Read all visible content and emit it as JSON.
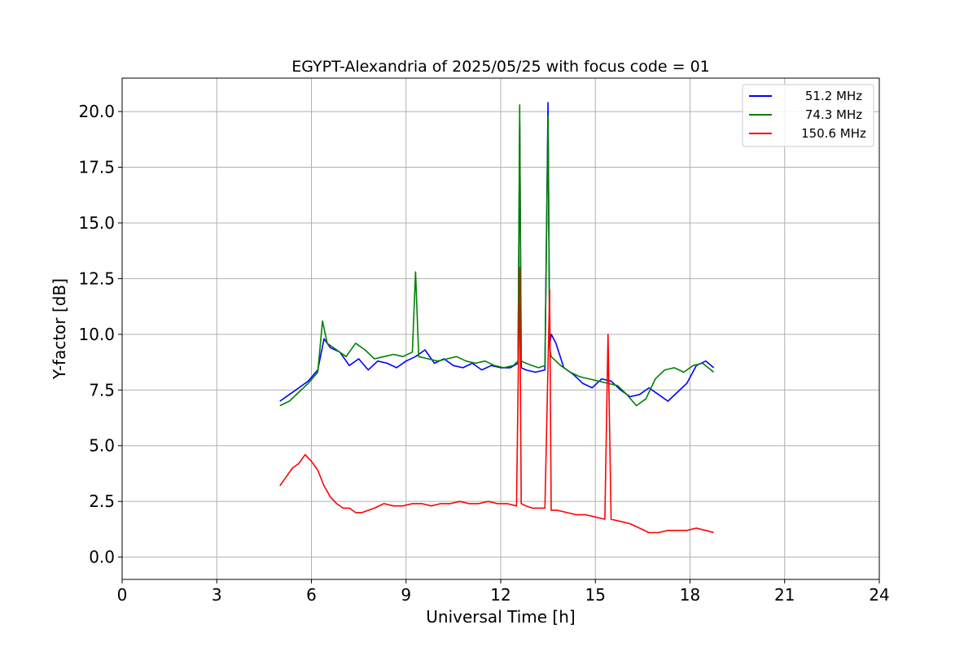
{
  "chart_data": {
    "type": "line",
    "title": "EGYPT-Alexandria of 2025/05/25 with focus code = 01",
    "xlabel": "Universal Time [h]",
    "ylabel": "Y-factor [dB]",
    "xlim": [
      0,
      24
    ],
    "ylim": [
      -1.0,
      21.5
    ],
    "xticks": [
      "0",
      "3",
      "6",
      "9",
      "12",
      "15",
      "18",
      "21",
      "24"
    ],
    "yticks": [
      "0.0",
      "2.5",
      "5.0",
      "7.5",
      "10.0",
      "12.5",
      "15.0",
      "17.5",
      "20.0"
    ],
    "grid": true,
    "legend_position": "top-right",
    "series": [
      {
        "name": "51.2 MHz",
        "color": "#0000ff",
        "x": [
          5.0,
          5.3,
          5.6,
          5.9,
          6.2,
          6.4,
          6.6,
          6.9,
          7.2,
          7.5,
          7.8,
          8.1,
          8.4,
          8.7,
          9.0,
          9.3,
          9.6,
          9.9,
          10.2,
          10.5,
          10.8,
          11.1,
          11.4,
          11.7,
          12.0,
          12.3,
          12.55,
          12.6,
          12.65,
          12.8,
          13.1,
          13.4,
          13.5,
          13.55,
          13.6,
          13.75,
          14.0,
          14.3,
          14.6,
          14.9,
          15.2,
          15.5,
          15.8,
          16.1,
          16.4,
          16.7,
          17.0,
          17.3,
          17.6,
          17.9,
          18.2,
          18.5,
          18.75
        ],
        "y": [
          7.0,
          7.3,
          7.6,
          7.9,
          8.4,
          9.8,
          9.4,
          9.2,
          8.6,
          8.9,
          8.4,
          8.8,
          8.7,
          8.5,
          8.8,
          9.0,
          9.3,
          8.7,
          8.9,
          8.6,
          8.5,
          8.7,
          8.4,
          8.6,
          8.5,
          8.5,
          8.7,
          19.5,
          8.5,
          8.4,
          8.3,
          8.4,
          20.4,
          9.5,
          10.0,
          9.6,
          8.5,
          8.2,
          7.8,
          7.6,
          8.0,
          7.9,
          7.5,
          7.2,
          7.3,
          7.6,
          7.3,
          7.0,
          7.4,
          7.8,
          8.6,
          8.8,
          8.5
        ]
      },
      {
        "name": "74.3 MHz",
        "color": "#008000",
        "x": [
          5.0,
          5.3,
          5.6,
          5.9,
          6.2,
          6.35,
          6.5,
          6.8,
          7.1,
          7.4,
          7.7,
          8.0,
          8.3,
          8.6,
          8.9,
          9.2,
          9.3,
          9.4,
          9.7,
          10.0,
          10.3,
          10.6,
          10.9,
          11.2,
          11.5,
          11.8,
          12.1,
          12.4,
          12.55,
          12.6,
          12.65,
          12.8,
          13.0,
          13.2,
          13.4,
          13.5,
          13.55,
          13.6,
          13.9,
          14.2,
          14.5,
          14.8,
          15.1,
          15.4,
          15.7,
          16.0,
          16.3,
          16.6,
          16.9,
          17.2,
          17.5,
          17.8,
          18.1,
          18.4,
          18.75
        ],
        "y": [
          6.8,
          7.0,
          7.4,
          7.8,
          8.3,
          10.6,
          9.6,
          9.3,
          9.0,
          9.6,
          9.3,
          8.9,
          9.0,
          9.1,
          9.0,
          9.2,
          12.8,
          9.0,
          8.9,
          8.8,
          8.9,
          9.0,
          8.8,
          8.7,
          8.8,
          8.6,
          8.5,
          8.6,
          8.8,
          20.3,
          8.8,
          8.7,
          8.6,
          8.5,
          8.6,
          19.8,
          9.4,
          9.0,
          8.6,
          8.3,
          8.1,
          8.0,
          7.9,
          7.8,
          7.7,
          7.3,
          6.8,
          7.1,
          8.0,
          8.4,
          8.5,
          8.3,
          8.6,
          8.7,
          8.3
        ]
      },
      {
        "name": "150.6 MHz",
        "color": "#ff0000",
        "x": [
          5.0,
          5.2,
          5.4,
          5.6,
          5.8,
          6.0,
          6.2,
          6.4,
          6.6,
          6.8,
          7.0,
          7.2,
          7.4,
          7.6,
          7.8,
          8.0,
          8.3,
          8.6,
          8.9,
          9.2,
          9.5,
          9.8,
          10.1,
          10.4,
          10.7,
          11.0,
          11.3,
          11.6,
          11.9,
          12.2,
          12.5,
          12.6,
          12.65,
          12.8,
          13.0,
          13.2,
          13.4,
          13.55,
          13.6,
          13.8,
          14.1,
          14.4,
          14.7,
          15.0,
          15.3,
          15.4,
          15.5,
          15.8,
          16.1,
          16.4,
          16.7,
          17.0,
          17.3,
          17.6,
          17.9,
          18.2,
          18.5,
          18.75
        ],
        "y": [
          3.2,
          3.6,
          4.0,
          4.2,
          4.6,
          4.3,
          3.9,
          3.2,
          2.7,
          2.4,
          2.2,
          2.2,
          2.0,
          2.0,
          2.1,
          2.2,
          2.4,
          2.3,
          2.3,
          2.4,
          2.4,
          2.3,
          2.4,
          2.4,
          2.5,
          2.4,
          2.4,
          2.5,
          2.4,
          2.4,
          2.3,
          13.0,
          2.4,
          2.3,
          2.2,
          2.2,
          2.2,
          12.0,
          2.1,
          2.1,
          2.0,
          1.9,
          1.9,
          1.8,
          1.7,
          10.0,
          1.7,
          1.6,
          1.5,
          1.3,
          1.1,
          1.1,
          1.2,
          1.2,
          1.2,
          1.3,
          1.2,
          1.1
        ]
      }
    ]
  }
}
